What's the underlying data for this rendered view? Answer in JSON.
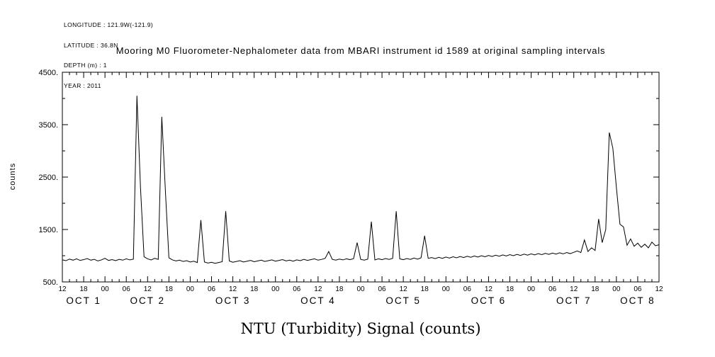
{
  "meta": {
    "longitude": "LONGITUDE : 121.9W(-121.9)",
    "latitude": "LATITUDE : 36.8N",
    "depth": "DEPTH (m) : 1",
    "year": "YEAR : 2011"
  },
  "chart_data": {
    "type": "line",
    "title": "Mooring M0 Fluorometer-Nephalometer data from MBARI instrument id 1589 at original sampling intervals",
    "xlabel": "NTU (Turbidity) Signal (counts)",
    "ylabel": "counts",
    "x_axis_description": "time from Oct 1 2011 12:00 to Oct 8 2011 12:00, hour-of-day ticks every 6 h",
    "x_range_hours": [
      0,
      168
    ],
    "ylim": [
      500,
      4500
    ],
    "y_ticks": [
      500,
      1500,
      2500,
      3500,
      4500
    ],
    "y_tick_labels": [
      "500.",
      "1500.",
      "2500.",
      "3500.",
      "4500."
    ],
    "y_minor_tick_interval": 500,
    "x_major_tick_interval_hours": 6,
    "x_minor_tick_interval_hours": 2,
    "x_tick_labels": [
      "12",
      "18",
      "00",
      "06",
      "12",
      "18",
      "00",
      "06",
      "12",
      "18",
      "00",
      "06",
      "12",
      "18",
      "00",
      "06",
      "12",
      "18",
      "00",
      "06",
      "12",
      "18",
      "00",
      "06",
      "12",
      "18",
      "00",
      "06",
      "12"
    ],
    "day_labels": [
      {
        "label": "OCT 1",
        "center_hour": 6
      },
      {
        "label": "OCT 2",
        "center_hour": 24
      },
      {
        "label": "OCT 3",
        "center_hour": 48
      },
      {
        "label": "OCT 4",
        "center_hour": 72
      },
      {
        "label": "OCT 5",
        "center_hour": 96
      },
      {
        "label": "OCT 6",
        "center_hour": 120
      },
      {
        "label": "OCT 7",
        "center_hour": 144
      },
      {
        "label": "OCT 8",
        "center_hour": 162
      }
    ],
    "grid": false,
    "legend": false,
    "series": [
      {
        "name": "NTU (Turbidity) Signal",
        "x_start_hour": 0,
        "x_step_hours": 1,
        "counts": [
          920,
          905,
          935,
          915,
          940,
          910,
          925,
          945,
          915,
          930,
          900,
          920,
          950,
          910,
          925,
          905,
          930,
          915,
          940,
          920,
          935,
          4050,
          2300,
          980,
          940,
          920,
          950,
          930,
          3650,
          2250,
          960,
          920,
          900,
          915,
          890,
          905,
          880,
          895,
          870,
          1680,
          880,
          860,
          875,
          855,
          870,
          885,
          1850,
          900,
          875,
          890,
          905,
          880,
          895,
          910,
          885,
          900,
          915,
          890,
          905,
          920,
          895,
          910,
          925,
          900,
          915,
          895,
          920,
          905,
          930,
          910,
          925,
          940,
          915,
          930,
          950,
          1080,
          930,
          915,
          935,
          920,
          940,
          925,
          945,
          1250,
          930,
          915,
          935,
          1650,
          920,
          940,
          925,
          945,
          930,
          950,
          1850,
          940,
          925,
          945,
          930,
          955,
          935,
          960,
          1380,
          950,
          965,
          945,
          970,
          950,
          975,
          955,
          980,
          960,
          985,
          965,
          990,
          970,
          995,
          975,
          1000,
          980,
          1005,
          985,
          1010,
          990,
          1015,
          995,
          1020,
          1000,
          1025,
          1005,
          1030,
          1010,
          1035,
          1015,
          1040,
          1020,
          1045,
          1025,
          1050,
          1030,
          1055,
          1035,
          1060,
          1040,
          1065,
          1090,
          1060,
          1300,
          1080,
          1150,
          1100,
          1700,
          1250,
          1500,
          3350,
          3050,
          2300,
          1600,
          1550,
          1200,
          1320,
          1180,
          1240,
          1160,
          1220,
          1150,
          1260,
          1190,
          1210
        ]
      }
    ]
  }
}
